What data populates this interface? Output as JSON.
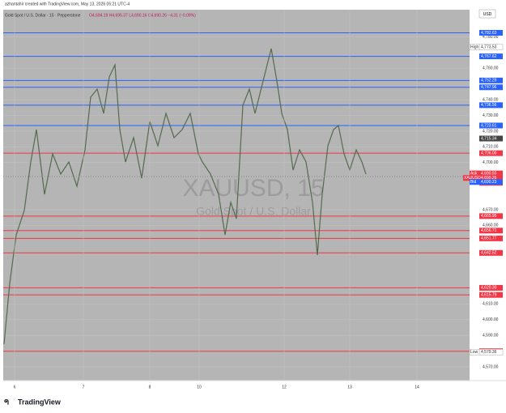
{
  "header": {
    "credit": "azhantahir created with TradingView.com, May 13, 2026 05:21 UTC-4",
    "symbol": "Gold Spot / U.S. Dollar · 15 · Pepperstone",
    "ohlc": "O4,694.19 H4,695.37 L4,690.16 C4,690.26 −4.31 (−0.09%)"
  },
  "watermark": {
    "symbol": "XAUUSD, 15",
    "name": "Gold Spot / U.S. Dollar"
  },
  "currency": "USD",
  "price_axis": [
    "4,780.00",
    "4,760.00",
    "4,740.00",
    "4,730.00",
    "4,720.00",
    "4,710.00",
    "4,700.00",
    "4,670.00",
    "4,660.00",
    "4,610.00",
    "4,600.00",
    "4,590.00",
    "4,570.00"
  ],
  "levels": [
    {
      "price": "4,782.63",
      "color": "#2962ff"
    },
    {
      "price": "4,767.62",
      "color": "#2962ff"
    },
    {
      "price": "4,752.29",
      "color": "#2962ff"
    },
    {
      "price": "4,747.96",
      "color": "#2962ff"
    },
    {
      "price": "4,736.56",
      "color": "#2962ff"
    },
    {
      "price": "4,723.61",
      "color": "#2962ff"
    },
    {
      "price": "4,706.00",
      "color": "#f23645"
    },
    {
      "price": "4,665.95",
      "color": "#f23645"
    },
    {
      "price": "4,656.71",
      "color": "#f23645"
    },
    {
      "price": "4,651.77",
      "color": "#f23645"
    },
    {
      "price": "4,642.52",
      "color": "#f23645"
    },
    {
      "price": "4,620.30",
      "color": "#f23645"
    },
    {
      "price": "4,615.79",
      "color": "#f23645"
    },
    {
      "price": "4,579.94",
      "color": "#f23645"
    }
  ],
  "markers": [
    {
      "tag": "High",
      "price": "4,773.53"
    },
    {
      "tag": "",
      "price": "4,715.34"
    },
    {
      "tag": "Ask",
      "price": "4,690.55"
    },
    {
      "tag": "XAUUSD",
      "price": "4,690.26"
    },
    {
      "tag": "Bid",
      "price": "4,690.23"
    },
    {
      "tag": "Low",
      "price": "4,579.36"
    }
  ],
  "countdown": "08:51",
  "dates": [
    "6",
    "7",
    "8",
    "10",
    "12",
    "13",
    "14"
  ],
  "footer": "TradingView"
}
